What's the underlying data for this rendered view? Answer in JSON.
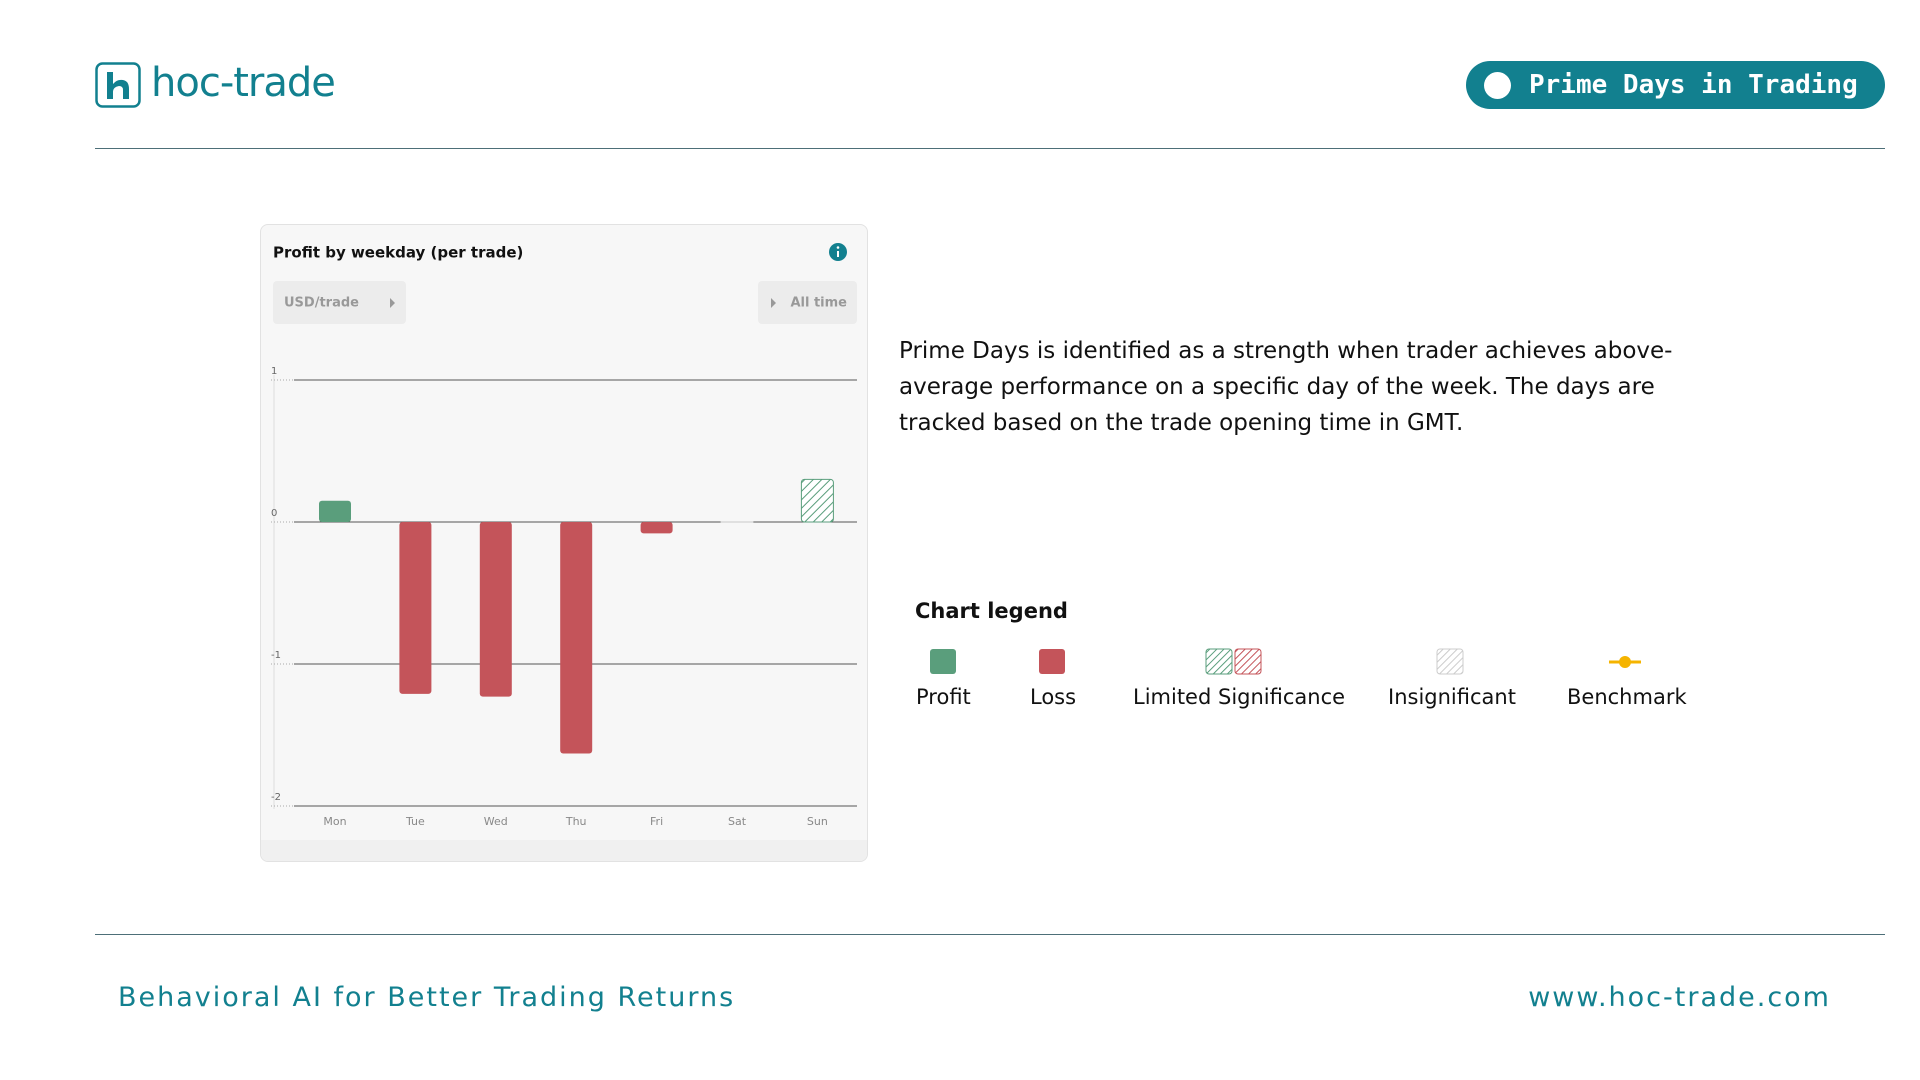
{
  "header": {
    "logo": "hoc-trade",
    "badge": "Prime Days in Trading"
  },
  "chart_data": {
    "type": "bar",
    "title": "Profit by weekday (per trade)",
    "unit_selector": "USD/trade",
    "period_selector": "All time",
    "categories": [
      "Mon",
      "Tue",
      "Wed",
      "Thu",
      "Fri",
      "Sat",
      "Sun"
    ],
    "values": [
      0.15,
      -1.21,
      -1.23,
      -1.63,
      -0.08,
      0,
      0.3
    ],
    "colors": [
      "#5a9e7c",
      "#c4545a",
      "#c4545a",
      "#c4545a",
      "#c4545a",
      "#c8c8c8",
      "#5a9e7c"
    ],
    "hatched": [
      false,
      false,
      false,
      false,
      false,
      true,
      true
    ],
    "ylim": [
      -2,
      1
    ],
    "yticks": [
      -2,
      -1,
      0,
      1
    ],
    "grid": true
  },
  "description": "Prime Days is identified as a strength when trader achieves above-average performance on a specific day of the week. The days are tracked based on the trade opening time in GMT.",
  "legend": {
    "title": "Chart legend",
    "items": [
      "Profit",
      "Loss",
      "Limited Significance",
      "Insignificant",
      "Benchmark"
    ]
  },
  "footer": {
    "tagline": "Behavioral AI for Better Trading Returns",
    "url": "www.hoc-trade.com"
  }
}
